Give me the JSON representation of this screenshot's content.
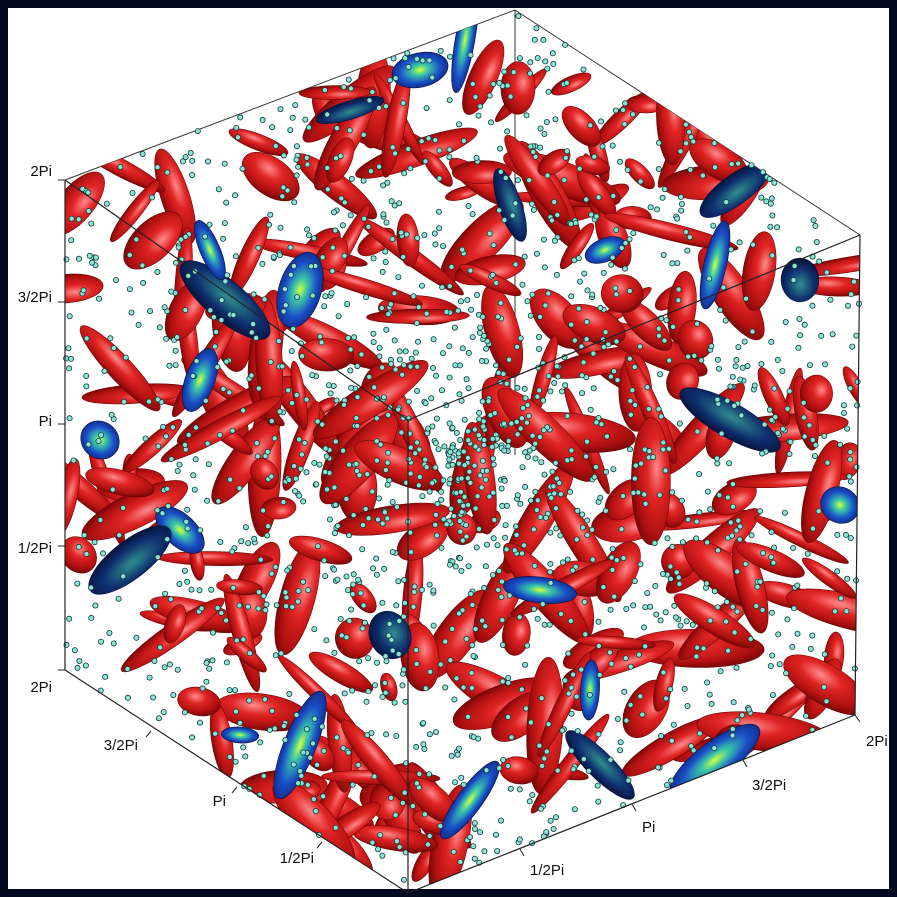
{
  "colors": {
    "frame_bg": "#020a22",
    "panel_bg": "#ffffff",
    "vortex_red": "#c81a1a",
    "vortex_red_dark": "#7a0a0a",
    "vortex_blue": "#1433a8",
    "vortex_cyan": "#2fb0b0",
    "particle_fill": "#8fe3d4",
    "particle_edge": "#0d3d3d"
  },
  "axes": {
    "left_vertical": [
      "2Pi",
      "3/2Pi",
      "Pi",
      "1/2Pi",
      "2Pi"
    ],
    "bottom_left": [
      "3/2Pi",
      "Pi",
      "1/2Pi"
    ],
    "bottom_right": [
      "1/2Pi",
      "Pi",
      "3/2Pi",
      "2Pi"
    ]
  }
}
